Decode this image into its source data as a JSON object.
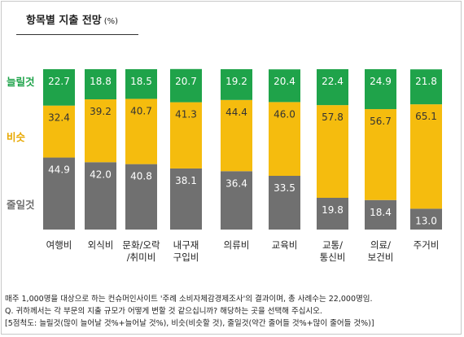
{
  "title": "항목별 지출 전망",
  "unit": "(%)",
  "chart_data": {
    "type": "bar",
    "stacked": true,
    "categories": [
      "여행비",
      "외식비",
      "문화/오락/취미비",
      "내구재구입비",
      "의류비",
      "교육비",
      "교통/통신비",
      "의료/보건비",
      "주거비"
    ],
    "category_lines": [
      [
        "여행비"
      ],
      [
        "외식비"
      ],
      [
        "문화/오락",
        "/취미비"
      ],
      [
        "내구재",
        "구입비"
      ],
      [
        "의류비"
      ],
      [
        "교육비"
      ],
      [
        "교통/",
        "통신비"
      ],
      [
        "의료/",
        "보건비"
      ],
      [
        "주거비"
      ]
    ],
    "series": [
      {
        "name": "줄일것",
        "values": [
          44.9,
          42.0,
          40.8,
          38.1,
          36.4,
          33.5,
          19.8,
          18.4,
          13.0
        ]
      },
      {
        "name": "비슷",
        "values": [
          32.4,
          39.2,
          40.7,
          41.3,
          44.4,
          46.0,
          57.8,
          56.7,
          65.1
        ]
      },
      {
        "name": "늘릴것",
        "values": [
          22.7,
          18.8,
          18.5,
          20.7,
          19.2,
          20.4,
          22.4,
          24.9,
          21.8
        ]
      }
    ],
    "value_labels": {
      "줄일것": [
        "44.9",
        "42.0",
        "40.8",
        "38.1",
        "36.4",
        "33.5",
        "19.8",
        "18.4",
        "13.0"
      ],
      "비슷": [
        "32.4",
        "39.2",
        "40.7",
        "41.3",
        "44.4",
        "46.0",
        "57.8",
        "56.7",
        "65.1"
      ],
      "늘릴것": [
        "22.7",
        "18.8",
        "18.5",
        "20.7",
        "19.2",
        "20.4",
        "22.4",
        "24.9",
        "21.8"
      ]
    },
    "colors": {
      "줄일것": "#707070",
      "비슷": "#f5bc0e",
      "늘릴것": "#1fa34a"
    },
    "legend_colors": {
      "줄일것": "#707070",
      "비슷": "#e8a800",
      "늘릴것": "#1fa34a"
    },
    "ylim": [
      0,
      100
    ],
    "legend_position": "left, aligned with segments"
  },
  "notes": [
    "매주 1,000명을 대상으로 하는 컨슈머인사이트 '주례 소비자체감경제조사'의 결과이며, 총 사례수는 22,000명임.",
    "Q. 귀하께서는 각 부문의 지출 규모가 어떻게 변할 것 같으십니까? 해당하는 곳을 선택해 주십시오.",
    "[5점척도: 늘릴것(많이 늘어날 것%+늘어날 것%), 비슷(비슷할 것), 줄일것(약간 줄어들 것%+많이 줄어들 것%)]"
  ]
}
